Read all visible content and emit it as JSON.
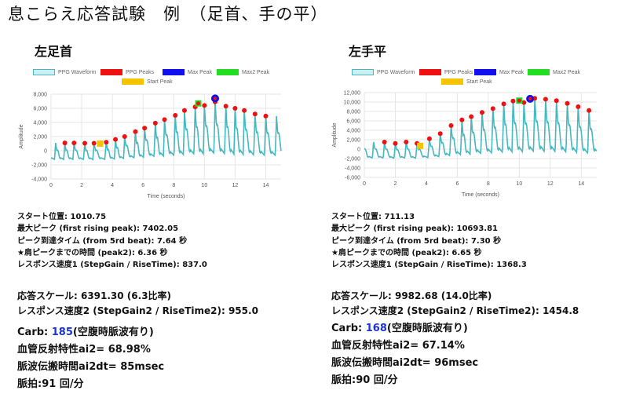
{
  "page_title": "息こらえ応答試験　例　（足首、手の平）",
  "legend": {
    "waveform": "PPG Waveform",
    "peaks": "PPG Peaks",
    "max_peak": "Max Peak",
    "max2_peak": "Max2 Peak",
    "start_peak": "Start Peak",
    "colors": {
      "waveform_fill": "#cdeff2",
      "waveform_line": "#45b8c0",
      "peaks": "#ee1111",
      "max_peak": "#1010ee",
      "max2_peak": "#22dd22",
      "start_peak": "#f5c400"
    }
  },
  "axis": {
    "xlabel": "Time (seconds)",
    "ylabel": "Amplitude"
  },
  "panels": [
    {
      "title": "左足首",
      "stats": [
        "スタート位置: 1010.75",
        "最大ピーク (first rising peak): 7402.05",
        "ピーク到達タイム (from 5rd beat): 7.64 秒",
        "★肩ピークまでの時間 (peak2): 6.36 秒",
        "レスポンス速度1 (StepGain / RiseTime): 837.0"
      ],
      "stats2": [
        "応答スケール: 6391.30 (6.3比率)",
        "レスポンス速度2 (StepGain2 / RiseTime2): 955.0"
      ],
      "carb_label": "Carb: ",
      "carb_value": "185",
      "carb_note": "(空腹時脈波有り)",
      "ai2": "血管反射特性ai2= 68.98%",
      "ai2dt": "脈波伝搬時間ai2dt= 85msec",
      "pulse": "脈拍:91 回/分"
    },
    {
      "title": "左手平",
      "stats": [
        "スタート位置: 711.13",
        "最大ピーク (first rising peak): 10693.81",
        "ピーク到達タイム (from 5rd beat): 7.30 秒",
        "★肩ピークまでの時間 (peak2): 6.65 秒",
        "レスポンス速度1 (StepGain / RiseTime): 1368.3"
      ],
      "stats2": [
        "応答スケール: 9982.68 (14.0比率)",
        "レスポンス速度2 (StepGain2 / RiseTime2): 1454.8"
      ],
      "carb_label": "Carb: ",
      "carb_value": "168",
      "carb_note": "(空腹時脈波有り)",
      "ai2": "血管反射特性ai2= 67.14%",
      "ai2dt": "脈波伝搬時間ai2dt= 96msec",
      "pulse": "脈拍:90 回/分"
    }
  ],
  "chart_data": [
    {
      "type": "line",
      "xlabel": "Time (seconds)",
      "ylabel": "Amplitude",
      "xlim": [
        0,
        15
      ],
      "ylim": [
        -4000,
        8000
      ],
      "xticks": [
        0,
        2,
        4,
        6,
        8,
        10,
        12,
        14
      ],
      "yticks": [
        -4000,
        -2000,
        0,
        2000,
        4000,
        6000,
        8000
      ],
      "ytick_labels": [
        "-4,000",
        "-2,000",
        "0",
        "2,000",
        "4,000",
        "6,000",
        "8,000"
      ],
      "series": [
        {
          "name": "PPG Peaks",
          "x": [
            0.9,
            1.5,
            2.2,
            2.8,
            3.6,
            4.2,
            4.8,
            5.5,
            6.1,
            6.8,
            7.4,
            8.1,
            8.7,
            9.4,
            10.0,
            10.7,
            11.4,
            12.0,
            12.6,
            13.3,
            14.0
          ],
          "y": [
            1100,
            1100,
            1050,
            1050,
            1200,
            1600,
            2000,
            2700,
            3200,
            3900,
            4400,
            5000,
            5700,
            6200,
            6400,
            6900,
            6300,
            6000,
            5700,
            5200,
            4900
          ]
        },
        {
          "name": "Max Peak",
          "x": [
            10.7
          ],
          "y": [
            7400
          ]
        },
        {
          "name": "Max2 Peak",
          "x": [
            9.6
          ],
          "y": [
            6700
          ]
        },
        {
          "name": "Start Peak",
          "x": [
            3.2
          ],
          "y": [
            1000
          ]
        }
      ]
    },
    {
      "type": "line",
      "xlabel": "Time (seconds)",
      "ylabel": "Amplitude",
      "xlim": [
        0,
        15
      ],
      "ylim": [
        -6000,
        12000
      ],
      "xticks": [
        0,
        2,
        4,
        6,
        8,
        10,
        12,
        14
      ],
      "yticks": [
        -6000,
        -4000,
        -2000,
        0,
        2000,
        4000,
        6000,
        8000,
        10000,
        12000
      ],
      "ytick_labels": [
        "-6,000",
        "-4,000",
        "-2,000",
        "0",
        "2,000",
        "4,000",
        "6,000",
        "8,000",
        "10,000",
        "12,000"
      ],
      "series": [
        {
          "name": "PPG Peaks",
          "x": [
            1.3,
            2.0,
            2.7,
            3.4,
            4.2,
            4.9,
            5.6,
            6.3,
            6.9,
            7.6,
            8.3,
            9.0,
            9.6,
            10.3,
            11.0,
            11.7,
            12.4,
            13.1,
            13.8,
            14.5
          ],
          "y": [
            1500,
            1200,
            1500,
            1200,
            2200,
            3300,
            5000,
            6200,
            6900,
            7800,
            8600,
            9600,
            10200,
            9900,
            10800,
            10600,
            10300,
            9700,
            9000,
            8200
          ]
        },
        {
          "name": "Max Peak",
          "x": [
            10.7
          ],
          "y": [
            10690
          ]
        },
        {
          "name": "Max2 Peak",
          "x": [
            10.0
          ],
          "y": [
            10300
          ]
        },
        {
          "name": "Start Peak",
          "x": [
            3.6
          ],
          "y": [
            700
          ]
        }
      ]
    }
  ]
}
